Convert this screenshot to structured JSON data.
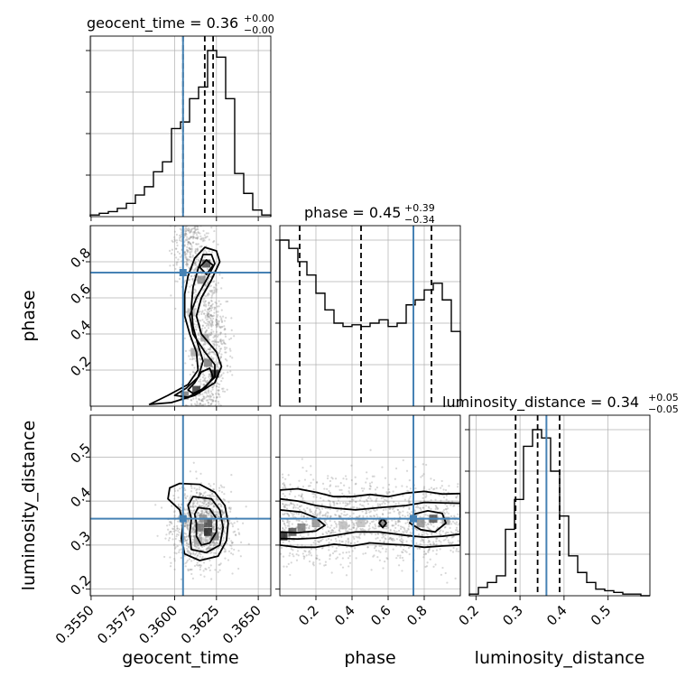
{
  "colors": {
    "truth": "#4682b4",
    "hist": "#000000",
    "quantile": "#000000",
    "grid": "#b0b0b0",
    "scatter": "#8c8c8c",
    "density_max": "#000000"
  },
  "titles": {
    "geocent_time": {
      "main": "geocent_time = 0.36",
      "sup": "+0.00",
      "sub": "−0.00"
    },
    "phase": {
      "main": "phase = 0.45",
      "sup": "+0.39",
      "sub": "−0.34"
    },
    "luminosity_distance": {
      "main": "luminosity_distance = 0.34",
      "sup": "+0.05",
      "sub": "−0.05"
    }
  },
  "axis_labels": {
    "x_geocent_time": "geocent_time",
    "x_phase": "phase",
    "x_luminosity_distance": "luminosity_distance",
    "y_phase": "phase",
    "y_luminosity_distance": "luminosity_distance"
  },
  "tick_labels": {
    "geocent_time": [
      "0.3550",
      "0.3575",
      "0.3600",
      "0.3625",
      "0.3650"
    ],
    "phase": [
      "0.2",
      "0.4",
      "0.6",
      "0.8"
    ],
    "luminosity_distance": [
      "0.2",
      "0.3",
      "0.4",
      "0.5"
    ]
  },
  "chart_data": {
    "type": "corner",
    "parameters": [
      "geocent_time",
      "phase",
      "luminosity_distance"
    ],
    "ranges": {
      "geocent_time": [
        0.35495,
        0.36575
      ],
      "phase": [
        0.0,
        1.0
      ],
      "luminosity_distance": [
        0.185,
        0.595
      ]
    },
    "ticks": {
      "geocent_time": [
        0.355,
        0.3575,
        0.36,
        0.3625,
        0.365
      ],
      "phase": [
        0.2,
        0.4,
        0.6,
        0.8
      ],
      "luminosity_distance": [
        0.2,
        0.3,
        0.4,
        0.5
      ]
    },
    "truths": {
      "geocent_time": 0.3605,
      "phase": 0.74,
      "luminosity_distance": 0.36
    },
    "quantiles": {
      "geocent_time": [
        0.3605,
        0.3618,
        0.3623
      ],
      "phase": [
        0.11,
        0.45,
        0.84
      ],
      "luminosity_distance": [
        0.29,
        0.34,
        0.39
      ]
    },
    "histograms": {
      "geocent_time": {
        "edges": [
          0.35495,
          0.35549,
          0.35603,
          0.35657,
          0.35711,
          0.35765,
          0.35819,
          0.35873,
          0.35927,
          0.35981,
          0.36035,
          0.36089,
          0.36143,
          0.36197,
          0.36251,
          0.36305,
          0.36359,
          0.36413,
          0.36467,
          0.36521,
          0.36575
        ],
        "counts": [
          1,
          2,
          3,
          5,
          8,
          13,
          18,
          27,
          33,
          53,
          57,
          71,
          78,
          100,
          96,
          71,
          26,
          14,
          4,
          1
        ]
      },
      "phase": {
        "edges": [
          0.0,
          0.05,
          0.1,
          0.15,
          0.2,
          0.25,
          0.3,
          0.35,
          0.4,
          0.45,
          0.5,
          0.55,
          0.6,
          0.65,
          0.7,
          0.75,
          0.8,
          0.85,
          0.9,
          0.95,
          1.0
        ],
        "counts": [
          100,
          95,
          87,
          79,
          68,
          58,
          50,
          48,
          49,
          48,
          50,
          52,
          48,
          50,
          61,
          64,
          70,
          74,
          64,
          45
        ]
      },
      "luminosity_distance": {
        "edges": [
          0.185,
          0.2055,
          0.226,
          0.2465,
          0.267,
          0.2875,
          0.308,
          0.3285,
          0.349,
          0.3695,
          0.39,
          0.4105,
          0.431,
          0.4515,
          0.472,
          0.4925,
          0.513,
          0.5335,
          0.554,
          0.5745,
          0.595
        ],
        "counts": [
          1,
          5,
          8,
          12,
          40,
          58,
          90,
          100,
          95,
          75,
          48,
          24,
          14,
          8,
          4,
          3,
          2,
          1,
          1,
          0
        ]
      }
    },
    "contours": {
      "phase_vs_geocent_time": [
        [
          [
            0.3598,
            0.02
          ],
          [
            0.3612,
            0.06
          ],
          [
            0.3624,
            0.13
          ],
          [
            0.3628,
            0.22
          ],
          [
            0.3625,
            0.3
          ],
          [
            0.3616,
            0.4
          ],
          [
            0.3613,
            0.5
          ],
          [
            0.3616,
            0.6
          ],
          [
            0.3622,
            0.7
          ],
          [
            0.3627,
            0.8
          ],
          [
            0.3625,
            0.86
          ],
          [
            0.3618,
            0.88
          ],
          [
            0.3612,
            0.82
          ],
          [
            0.3608,
            0.72
          ],
          [
            0.3606,
            0.62
          ],
          [
            0.3606,
            0.5
          ],
          [
            0.3609,
            0.4
          ],
          [
            0.3613,
            0.3
          ],
          [
            0.3614,
            0.2
          ],
          [
            0.3608,
            0.12
          ],
          [
            0.3596,
            0.06
          ],
          [
            0.3585,
            0.01
          ]
        ],
        [
          [
            0.3608,
            0.05
          ],
          [
            0.3616,
            0.09
          ],
          [
            0.3624,
            0.16
          ],
          [
            0.3624,
            0.23
          ],
          [
            0.3618,
            0.3
          ],
          [
            0.3611,
            0.4
          ],
          [
            0.3609,
            0.5
          ],
          [
            0.3613,
            0.6
          ],
          [
            0.3619,
            0.7
          ],
          [
            0.3624,
            0.79
          ],
          [
            0.3622,
            0.84
          ],
          [
            0.3617,
            0.84
          ],
          [
            0.3614,
            0.76
          ],
          [
            0.3611,
            0.66
          ],
          [
            0.361,
            0.55
          ],
          [
            0.3611,
            0.44
          ],
          [
            0.3614,
            0.34
          ],
          [
            0.3617,
            0.25
          ],
          [
            0.3614,
            0.16
          ],
          [
            0.3607,
            0.1
          ],
          [
            0.36,
            0.06
          ]
        ],
        [
          [
            0.3611,
            0.07
          ],
          [
            0.3618,
            0.1
          ],
          [
            0.3623,
            0.16
          ],
          [
            0.3621,
            0.21
          ],
          [
            0.3616,
            0.19
          ],
          [
            0.3612,
            0.13
          ],
          [
            0.3608,
            0.09
          ]
        ],
        [
          [
            0.3619,
            0.73
          ],
          [
            0.3623,
            0.78
          ],
          [
            0.3619,
            0.81
          ],
          [
            0.3615,
            0.77
          ]
        ]
      ],
      "luminosity_distance_vs_geocent_time": [
        [
          [
            0.3603,
            0.44
          ],
          [
            0.3615,
            0.438
          ],
          [
            0.3624,
            0.42
          ],
          [
            0.363,
            0.39
          ],
          [
            0.3632,
            0.35
          ],
          [
            0.3631,
            0.31
          ],
          [
            0.3626,
            0.275
          ],
          [
            0.3615,
            0.265
          ],
          [
            0.3606,
            0.28
          ],
          [
            0.3604,
            0.315
          ],
          [
            0.3605,
            0.35
          ],
          [
            0.3603,
            0.38
          ],
          [
            0.3596,
            0.405
          ],
          [
            0.3597,
            0.43
          ]
        ],
        [
          [
            0.3611,
            0.41
          ],
          [
            0.3622,
            0.405
          ],
          [
            0.3627,
            0.38
          ],
          [
            0.3629,
            0.34
          ],
          [
            0.3627,
            0.3
          ],
          [
            0.3619,
            0.283
          ],
          [
            0.361,
            0.29
          ],
          [
            0.3609,
            0.325
          ],
          [
            0.361,
            0.36
          ],
          [
            0.3608,
            0.39
          ]
        ],
        [
          [
            0.3614,
            0.385
          ],
          [
            0.3621,
            0.382
          ],
          [
            0.3625,
            0.36
          ],
          [
            0.3625,
            0.33
          ],
          [
            0.3621,
            0.305
          ],
          [
            0.3616,
            0.3
          ],
          [
            0.3613,
            0.32
          ],
          [
            0.3613,
            0.35
          ],
          [
            0.3612,
            0.37
          ]
        ]
      ],
      "luminosity_distance_vs_phase": [
        [
          [
            0.0,
            0.425
          ],
          [
            0.1,
            0.428
          ],
          [
            0.2,
            0.42
          ],
          [
            0.3,
            0.41
          ],
          [
            0.4,
            0.41
          ],
          [
            0.5,
            0.415
          ],
          [
            0.6,
            0.41
          ],
          [
            0.7,
            0.418
          ],
          [
            0.8,
            0.422
          ],
          [
            0.9,
            0.416
          ],
          [
            1.0,
            0.417
          ],
          [
            1.0,
            0.3
          ],
          [
            0.9,
            0.298
          ],
          [
            0.8,
            0.295
          ],
          [
            0.7,
            0.3
          ],
          [
            0.6,
            0.302
          ],
          [
            0.5,
            0.305
          ],
          [
            0.4,
            0.298
          ],
          [
            0.3,
            0.302
          ],
          [
            0.2,
            0.295
          ],
          [
            0.1,
            0.295
          ],
          [
            0.0,
            0.3
          ]
        ],
        [
          [
            0.0,
            0.405
          ],
          [
            0.1,
            0.4
          ],
          [
            0.2,
            0.39
          ],
          [
            0.3,
            0.384
          ],
          [
            0.42,
            0.38
          ],
          [
            0.55,
            0.385
          ],
          [
            0.7,
            0.39
          ],
          [
            0.8,
            0.397
          ],
          [
            0.9,
            0.396
          ],
          [
            1.0,
            0.395
          ],
          [
            1.0,
            0.325
          ],
          [
            0.9,
            0.32
          ],
          [
            0.8,
            0.318
          ],
          [
            0.7,
            0.322
          ],
          [
            0.55,
            0.33
          ],
          [
            0.42,
            0.33
          ],
          [
            0.3,
            0.322
          ],
          [
            0.2,
            0.316
          ],
          [
            0.1,
            0.314
          ],
          [
            0.0,
            0.315
          ]
        ],
        [
          [
            0.0,
            0.38
          ],
          [
            0.12,
            0.375
          ],
          [
            0.2,
            0.362
          ],
          [
            0.25,
            0.345
          ],
          [
            0.2,
            0.332
          ],
          [
            0.1,
            0.328
          ],
          [
            0.0,
            0.33
          ]
        ],
        [
          [
            0.74,
            0.37
          ],
          [
            0.82,
            0.378
          ],
          [
            0.9,
            0.372
          ],
          [
            0.92,
            0.35
          ],
          [
            0.86,
            0.33
          ],
          [
            0.78,
            0.335
          ],
          [
            0.72,
            0.35
          ]
        ],
        [
          [
            0.55,
            0.35
          ],
          [
            0.57,
            0.36
          ],
          [
            0.59,
            0.35
          ],
          [
            0.57,
            0.34
          ]
        ]
      ]
    },
    "density_blocks": {
      "phase_vs_geocent_time": [
        [
          0.3619,
          0.79,
          0.8
        ],
        [
          0.3624,
          0.18,
          1.0
        ],
        [
          0.3613,
          0.09,
          0.9
        ],
        [
          0.3606,
          0.06,
          0.6
        ],
        [
          0.362,
          0.24,
          0.6
        ],
        [
          0.3616,
          0.7,
          0.5
        ],
        [
          0.3618,
          0.38,
          0.4
        ],
        [
          0.361,
          0.52,
          0.3
        ],
        [
          0.3612,
          0.3,
          0.4
        ]
      ],
      "luminosity_distance_vs_geocent_time": [
        [
          0.362,
          0.33,
          1.0
        ],
        [
          0.362,
          0.35,
          0.8
        ],
        [
          0.3615,
          0.34,
          0.6
        ],
        [
          0.3624,
          0.32,
          0.6
        ],
        [
          0.3617,
          0.36,
          0.5
        ],
        [
          0.3614,
          0.31,
          0.4
        ]
      ],
      "luminosity_distance_vs_phase": [
        [
          0.02,
          0.32,
          1.0
        ],
        [
          0.07,
          0.33,
          0.8
        ],
        [
          0.85,
          0.36,
          0.8
        ],
        [
          0.12,
          0.34,
          0.6
        ],
        [
          0.2,
          0.35,
          0.5
        ],
        [
          0.57,
          0.35,
          0.6
        ],
        [
          0.78,
          0.35,
          0.5
        ],
        [
          0.92,
          0.355,
          0.4
        ],
        [
          0.35,
          0.345,
          0.3
        ],
        [
          0.45,
          0.35,
          0.3
        ]
      ]
    }
  }
}
